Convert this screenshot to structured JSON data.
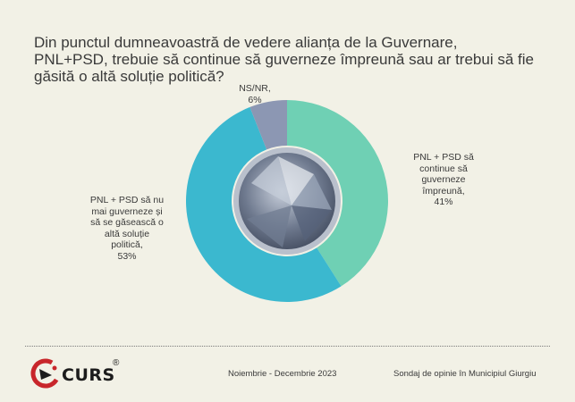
{
  "title": {
    "line1": "Din punctul dumneavoastră de vedere alianța de la Guvernare,",
    "line2": "PNL+PSD, trebuie să continue să guverneze împreună sau ar trebui să fie",
    "line3": "găsită o altă soluție politică?"
  },
  "chart_data": {
    "type": "pie",
    "variant": "donut",
    "title": "Din punctul dumneavoastră de vedere alianța de la Guvernare, PNL+PSD, trebuie să continue să guverneze împreună sau ar trebui să fie găsită o altă soluție politică?",
    "slices": [
      {
        "label_lines": [
          "PNL + PSD să",
          "continue să",
          "guverneze",
          "împreună,",
          "41%"
        ],
        "label": "PNL + PSD să continue să guverneze împreună",
        "value": 41,
        "color": "#6fd0b4"
      },
      {
        "label_lines": [
          "PNL + PSD să nu",
          "mai guverneze și",
          "să se găsească o",
          "altă soluție",
          "politică,",
          "53%"
        ],
        "label": "PNL + PSD să nu mai guverneze și să se găsească o altă soluție politică",
        "value": 53,
        "color": "#3bb8cf"
      },
      {
        "label_lines": [
          "NS/NR,",
          "6%"
        ],
        "label": "NS/NR",
        "value": 6,
        "color": "#8c97b3"
      }
    ]
  },
  "footer": {
    "logo_text": "CURS",
    "logo_reg": "®",
    "period": "Noiembrie - Decembrie 2023",
    "source": "Sondaj de opinie în Municipiul Giurgiu"
  }
}
